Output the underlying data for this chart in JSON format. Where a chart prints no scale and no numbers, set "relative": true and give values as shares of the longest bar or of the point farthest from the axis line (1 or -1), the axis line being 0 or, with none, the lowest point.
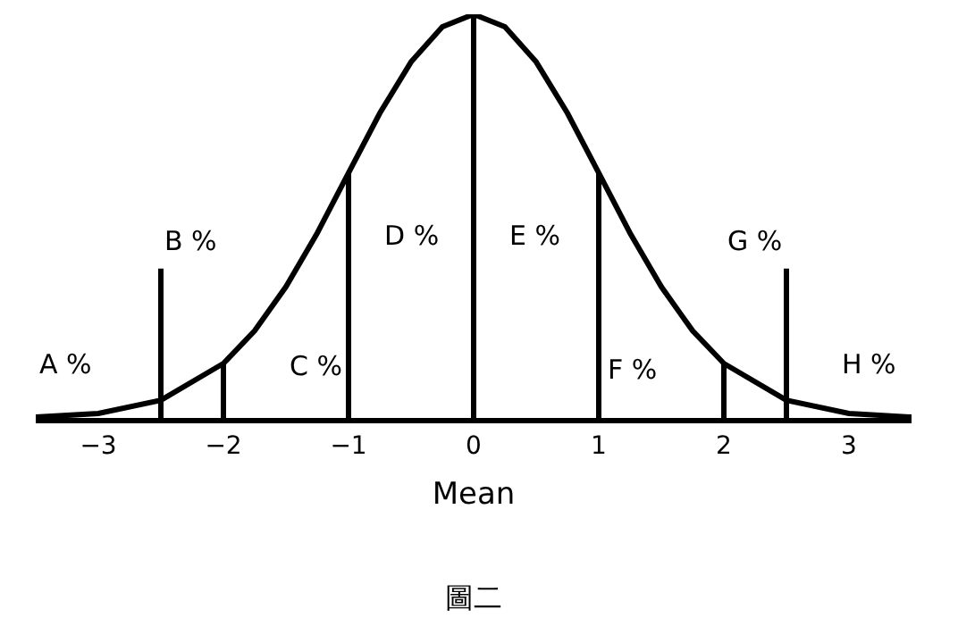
{
  "chart_data": {
    "type": "line",
    "relative": true,
    "xlabel": "Mean",
    "xlim": [
      -3.5,
      3.5
    ],
    "xticks": [
      {
        "value": -3,
        "label": "−3"
      },
      {
        "value": -2,
        "label": "−2"
      },
      {
        "value": -1,
        "label": "−1"
      },
      0,
      1,
      2,
      3
    ],
    "marker": "none",
    "line_style": "solid",
    "series": [
      {
        "color": "#000000",
        "x": [
          -3.5,
          -3.0,
          -2.5,
          -2.0,
          -1.75,
          -1.5,
          -1.25,
          -1.0,
          -0.75,
          -0.5,
          -0.25,
          0,
          0.25,
          0.5,
          0.75,
          1.0,
          1.25,
          1.5,
          1.75,
          2.0,
          2.5,
          3.0,
          3.5
        ],
        "values": [
          0.002,
          0.011,
          0.044,
          0.135,
          0.216,
          0.325,
          0.458,
          0.607,
          0.755,
          0.882,
          0.969,
          1,
          0.969,
          0.882,
          0.755,
          0.607,
          0.458,
          0.325,
          0.216,
          0.135,
          0.044,
          0.011,
          0.002
        ]
      },
      {
        "color": "#000000",
        "x": [
          -2.5,
          -2.5,
          null,
          -2,
          -2,
          null,
          -1,
          -1,
          null,
          1,
          1,
          null,
          2,
          2,
          null,
          2.5,
          2.5
        ],
        "values": [
          0,
          0.37,
          null,
          0,
          0.135,
          null,
          0,
          0.607,
          null,
          0,
          0.607,
          null,
          0,
          0.135,
          null,
          0,
          0.37
        ]
      }
    ],
    "ref_lines": [
      {
        "axis": "x",
        "value": 0,
        "color": "#000000",
        "line_style": "solid"
      }
    ],
    "annotations": [
      "A %",
      "B %",
      "C %",
      "D %",
      "E %",
      "F %",
      "G %",
      "H %",
      "圖二"
    ]
  }
}
